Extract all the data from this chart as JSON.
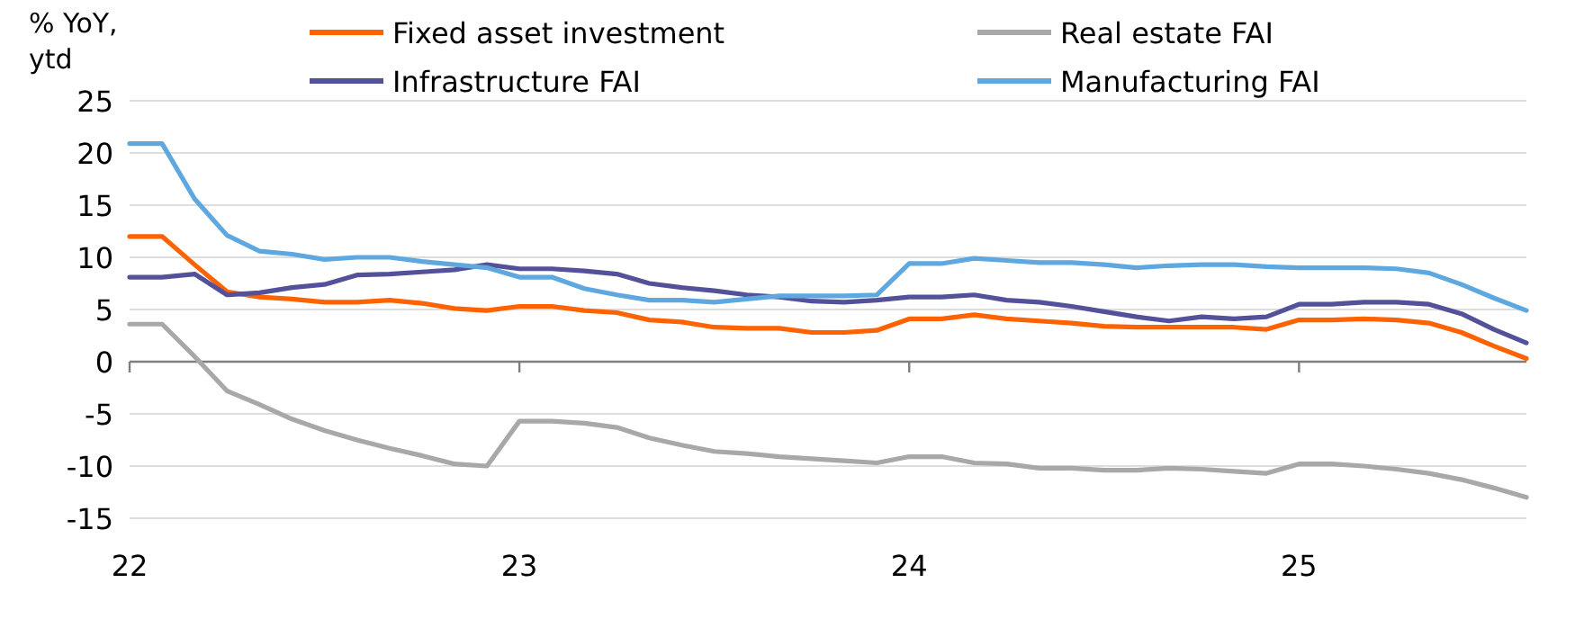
{
  "chart_data": {
    "type": "line",
    "ylabel": "% YoY, ytd",
    "x": [
      "2022-01",
      "2022-02",
      "2022-03",
      "2022-04",
      "2022-05",
      "2022-06",
      "2022-07",
      "2022-08",
      "2022-09",
      "2022-10",
      "2022-11",
      "2022-12",
      "2023-01",
      "2023-02",
      "2023-03",
      "2023-04",
      "2023-05",
      "2023-06",
      "2023-07",
      "2023-08",
      "2023-09",
      "2023-10",
      "2023-11",
      "2023-12",
      "2024-01",
      "2024-02",
      "2024-03",
      "2024-04",
      "2024-05",
      "2024-06",
      "2024-07",
      "2024-08",
      "2024-09",
      "2024-10",
      "2024-11",
      "2024-12",
      "2025-01",
      "2025-02",
      "2025-03",
      "2025-04",
      "2025-05",
      "2025-06",
      "2025-07",
      "2025-08"
    ],
    "series": [
      {
        "name": "Fixed asset investment",
        "color": "#ff6200",
        "values": [
          12.0,
          12.0,
          9.3,
          6.7,
          6.2,
          6.0,
          5.7,
          5.7,
          5.9,
          5.6,
          5.1,
          4.9,
          5.3,
          5.3,
          4.9,
          4.7,
          4.0,
          3.8,
          3.3,
          3.2,
          3.2,
          2.8,
          2.8,
          3.0,
          4.1,
          4.1,
          4.5,
          4.1,
          3.9,
          3.7,
          3.4,
          3.3,
          3.3,
          3.3,
          3.3,
          3.1,
          4.0,
          4.0,
          4.1,
          4.0,
          3.7,
          2.8,
          1.5,
          0.3
        ]
      },
      {
        "name": "Real estate FAI",
        "color": "#a8a8a8",
        "values": [
          3.6,
          3.6,
          0.5,
          -2.8,
          -4.1,
          -5.5,
          -6.6,
          -7.5,
          -8.3,
          -9.0,
          -9.8,
          -10.0,
          -5.7,
          -5.7,
          -5.9,
          -6.3,
          -7.3,
          -8.0,
          -8.6,
          -8.8,
          -9.1,
          -9.3,
          -9.5,
          -9.7,
          -9.1,
          -9.1,
          -9.7,
          -9.8,
          -10.2,
          -10.2,
          -10.4,
          -10.4,
          -10.2,
          -10.3,
          -10.5,
          -10.7,
          -9.8,
          -9.8,
          -10.0,
          -10.3,
          -10.7,
          -11.3,
          -12.1,
          -13.0
        ]
      },
      {
        "name": "Infrastructure FAI",
        "color": "#525199",
        "values": [
          8.1,
          8.1,
          8.4,
          6.4,
          6.6,
          7.1,
          7.4,
          8.3,
          8.4,
          8.6,
          8.8,
          9.3,
          8.9,
          8.9,
          8.7,
          8.4,
          7.5,
          7.1,
          6.8,
          6.4,
          6.2,
          5.8,
          5.7,
          5.9,
          6.2,
          6.2,
          6.4,
          5.9,
          5.7,
          5.3,
          4.8,
          4.3,
          3.9,
          4.3,
          4.1,
          4.3,
          5.5,
          5.5,
          5.7,
          5.7,
          5.5,
          4.6,
          3.1,
          1.8
        ]
      },
      {
        "name": "Manufacturing FAI",
        "color": "#5fa8df",
        "values": [
          20.9,
          20.9,
          15.6,
          12.1,
          10.6,
          10.3,
          9.8,
          10.0,
          10.0,
          9.6,
          9.3,
          9.0,
          8.1,
          8.1,
          7.0,
          6.4,
          5.9,
          5.9,
          5.7,
          6.0,
          6.3,
          6.3,
          6.3,
          6.4,
          9.4,
          9.4,
          9.9,
          9.7,
          9.5,
          9.5,
          9.3,
          9.0,
          9.2,
          9.3,
          9.3,
          9.1,
          9.0,
          9.0,
          9.0,
          8.9,
          8.5,
          7.4,
          6.1,
          4.9
        ]
      }
    ],
    "xlim": [
      "2022-01",
      "2025-08"
    ],
    "xticks": [
      {
        "value": "2022-01",
        "label": "22"
      },
      {
        "value": "2023-01",
        "label": "23"
      },
      {
        "value": "2024-01",
        "label": "24"
      },
      {
        "value": "2025-01",
        "label": "25"
      }
    ],
    "ylim": [
      -15,
      25
    ],
    "yticks": [
      -15,
      -10,
      -5,
      0,
      5,
      10,
      15,
      20,
      25
    ],
    "grid": "y",
    "legend": "top",
    "line_style": "solid",
    "marker": "none"
  }
}
